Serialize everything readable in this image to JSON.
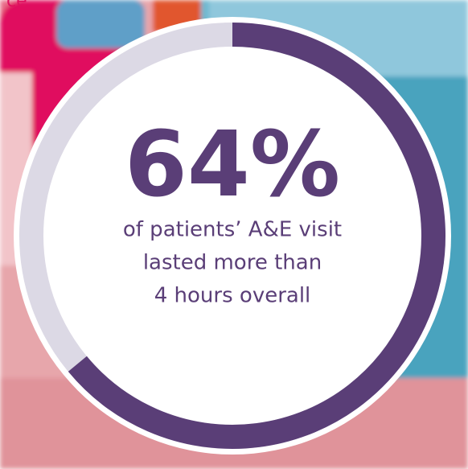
{
  "corner_text": "ce",
  "chart_data": {
    "type": "donut",
    "values": [
      64
    ],
    "value_labels": [
      "64%"
    ],
    "ylim": [
      0,
      100
    ],
    "caption": [
      "of patients’ A&E visit",
      "lasted more than",
      "4 hours overall"
    ],
    "color": "#5a3e77",
    "track_color": "#dcd9e5"
  }
}
